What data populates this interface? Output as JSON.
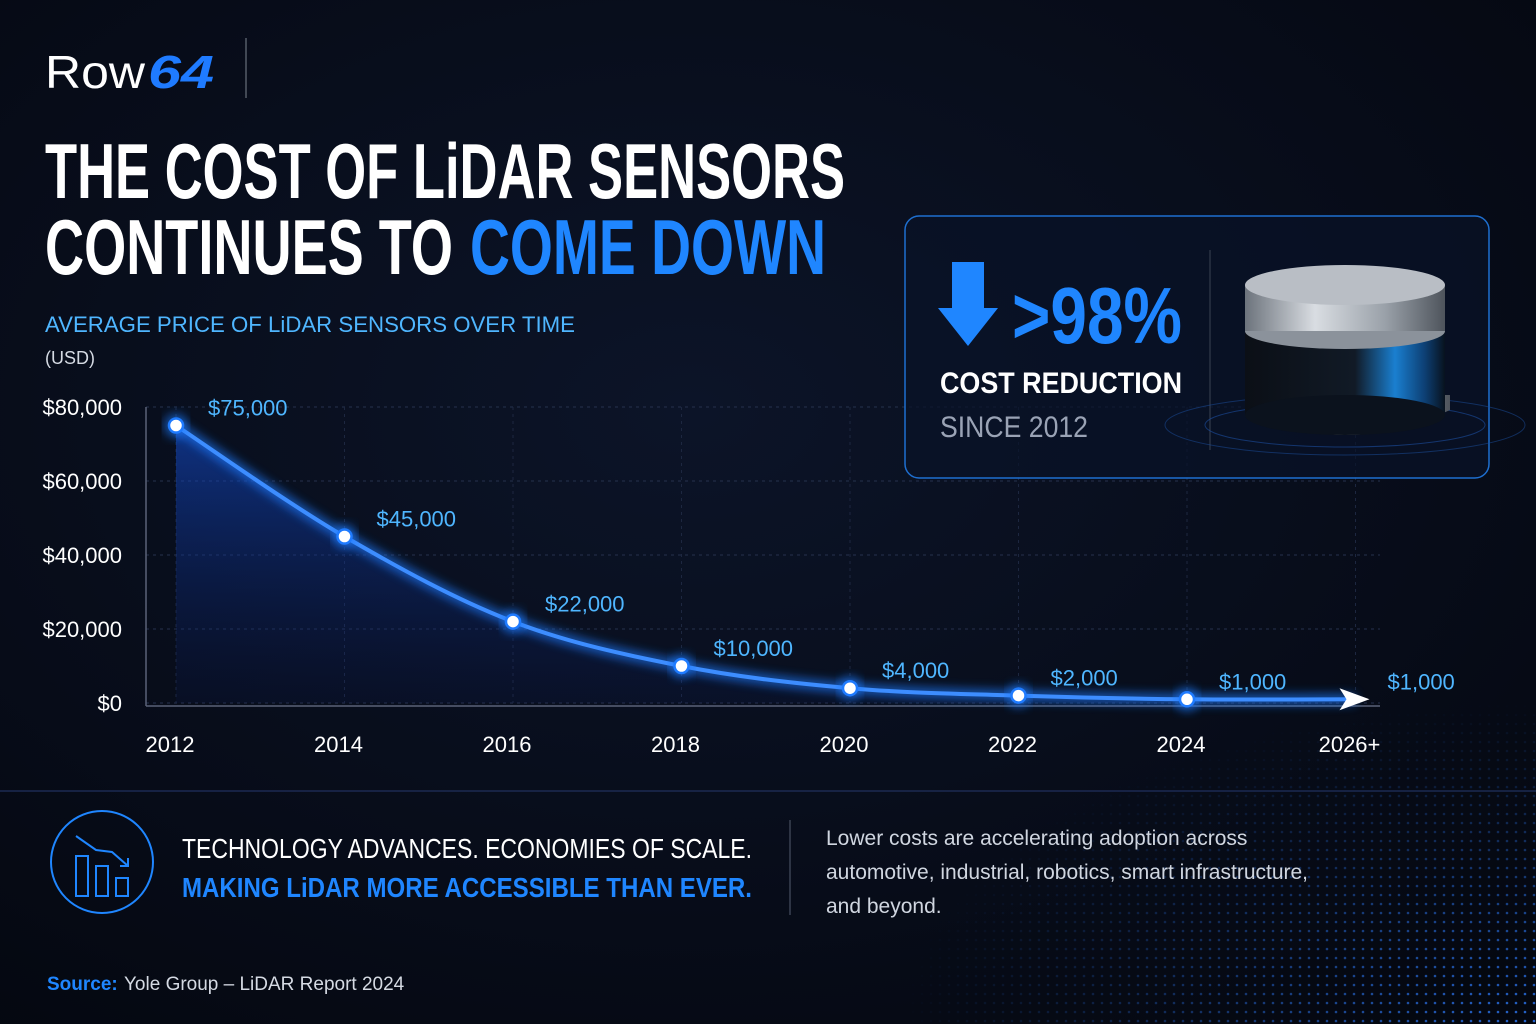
{
  "brand": {
    "name": "Row",
    "number": "64"
  },
  "headline": {
    "line1": "THE COST OF LiDAR SENSORS",
    "line2_start": "CONTINUES TO",
    "line2_highlight": "COME DOWN"
  },
  "chart_data": {
    "type": "line",
    "title": "AVERAGE PRICE OF LiDAR SENSORS OVER TIME",
    "y_label": "(USD)",
    "categories": [
      "2012",
      "2014",
      "2016",
      "2018",
      "2020",
      "2022",
      "2024",
      "2026+"
    ],
    "values": [
      75000,
      45000,
      22000,
      10000,
      4000,
      2000,
      1000,
      1000
    ],
    "value_labels": [
      "$75,000",
      "$45,000",
      "$22,000",
      "$10,000",
      "$4,000",
      "$2,000",
      "$1,000",
      "$1,000"
    ],
    "color": "#1f7bff",
    "ylim": [
      0,
      80000
    ],
    "yticks": [
      {
        "value": 0,
        "label": "$0"
      },
      {
        "value": 20000,
        "label": "$20,000"
      },
      {
        "value": 40000,
        "label": "$40,000"
      },
      {
        "value": 60000,
        "label": "$60,000"
      },
      {
        "value": 80000,
        "label": "$80,000"
      }
    ],
    "grid": true
  },
  "stat": {
    "value": ">98%",
    "label": "COST REDUCTION",
    "since": "SINCE 2012"
  },
  "takeaway": {
    "line1": "TECHNOLOGY ADVANCES. ECONOMIES OF SCALE.",
    "line2": "MAKING LiDAR MORE ACCESSIBLE THAN EVER.",
    "body": [
      "Lower costs are accelerating adoption across",
      "automotive, industrial, robotics, smart infrastructure,",
      "and beyond."
    ]
  },
  "source": {
    "label": "Source:",
    "text": "Yole Group – LiDAR Report 2024"
  }
}
